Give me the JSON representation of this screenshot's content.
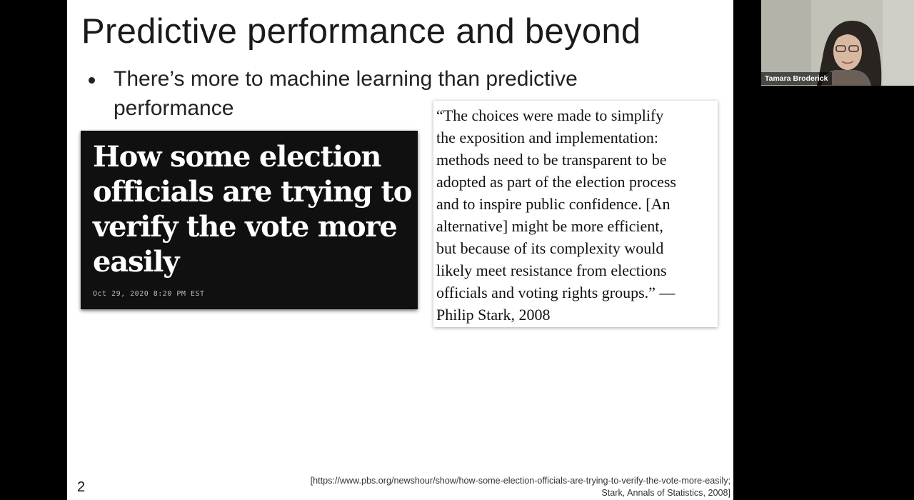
{
  "slide": {
    "title": "Predictive performance and beyond",
    "bullet": "There’s more to machine learning than predictive performance",
    "page_number": "2"
  },
  "headline_card": {
    "headline": "How some election officials are trying to verify the vote more easily",
    "date": "Oct 29, 2020 8:20 PM EST"
  },
  "quote_card": {
    "text": "“The choices were made to simplify\nthe exposition and implementation:\nmethods need to be transparent to be\nadopted as part of the election process\nand to inspire public confidence. [An\nalternative] might be more efficient,\nbut because of its complexity would\nlikely meet resistance from elections\nofficials and voting rights groups.” —\nPhilip Stark, 2008"
  },
  "citation": {
    "line1": "[https://www.pbs.org/newshour/show/how-some-election-officials-are-trying-to-verify-the-vote-more-easily;",
    "line2": "Stark, Annals of Statistics, 2008]"
  },
  "video": {
    "participant_name": "Tamara Broderick"
  },
  "colors": {
    "slide_background": "#ffffff",
    "headline_card_background": "#101010",
    "video_background": "#bdbdb5",
    "screen_background": "#000000"
  }
}
